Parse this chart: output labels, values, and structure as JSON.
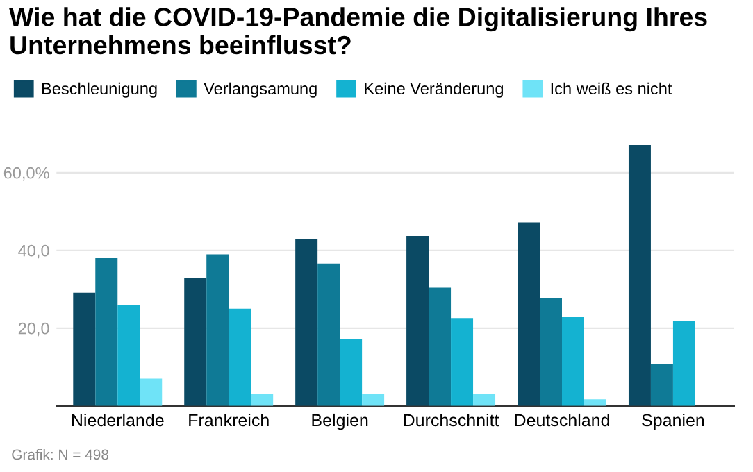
{
  "chart_data": {
    "type": "bar",
    "title": "Wie hat die COVID-19-Pandemie die Digitalisierung Ihres Unternehmens beeinflusst?",
    "categories": [
      "Niederlande",
      "Frankreich",
      "Belgien",
      "Durchschnitt",
      "Deutschland",
      "Spanien"
    ],
    "series": [
      {
        "name": "Beschleunigung",
        "color": "#0b4a64",
        "values": [
          29.1,
          32.9,
          42.8,
          43.7,
          47.2,
          67.1
        ]
      },
      {
        "name": "Verlangsamung",
        "color": "#0f7a96",
        "values": [
          38.1,
          39.0,
          36.6,
          30.4,
          27.8,
          10.7
        ]
      },
      {
        "name": "Keine Veränderung",
        "color": "#14b2d1",
        "values": [
          26.0,
          25.0,
          17.2,
          22.6,
          23.0,
          21.8
        ]
      },
      {
        "name": "Ich weiß es nicht",
        "color": "#6fe3f7",
        "values": [
          7.0,
          3.0,
          3.0,
          3.0,
          1.7,
          null
        ]
      }
    ],
    "ylim": [
      0,
      68
    ],
    "yticks": [
      {
        "value": 20,
        "label": "20,0"
      },
      {
        "value": 40,
        "label": "40,0"
      },
      {
        "value": 60,
        "label": "60,0%"
      }
    ],
    "grid": "y",
    "legend": "top left",
    "annotations": [
      "Grafik: N = 498"
    ]
  }
}
